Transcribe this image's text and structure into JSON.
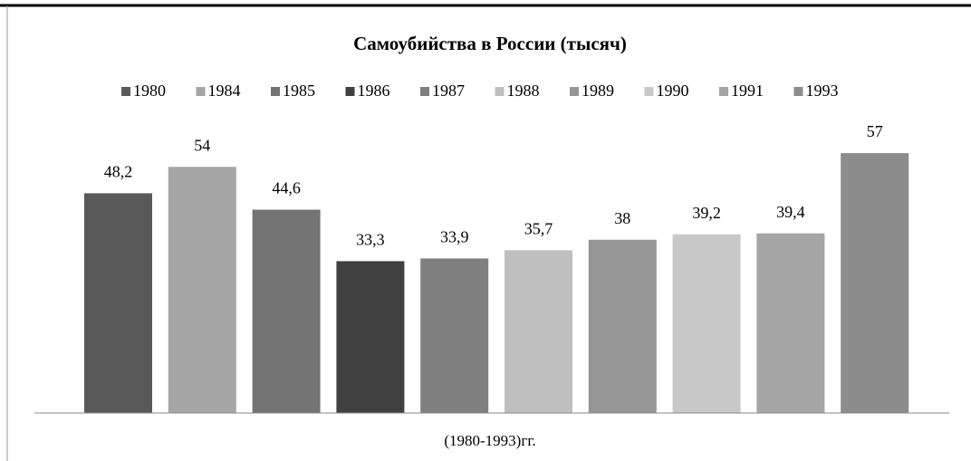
{
  "chart_data": {
    "type": "bar",
    "title": "Самоубийства в России (тысяч)",
    "x_label": "(1980-1993)гг.",
    "categories": [
      null
    ],
    "ylim": [
      0,
      60
    ],
    "series": [
      {
        "name": "1980",
        "color": "#595959",
        "values": [
          48.2
        ],
        "value_labels": [
          "48,2"
        ]
      },
      {
        "name": "1984",
        "color": "#a6a6a6",
        "values": [
          54
        ],
        "value_labels": [
          "54"
        ]
      },
      {
        "name": "1985",
        "color": "#737373",
        "values": [
          44.6
        ],
        "value_labels": [
          "44,6"
        ]
      },
      {
        "name": "1986",
        "color": "#404040",
        "values": [
          33.3
        ],
        "value_labels": [
          "33,3"
        ]
      },
      {
        "name": "1987",
        "color": "#7f7f7f",
        "values": [
          33.9
        ],
        "value_labels": [
          "33,9"
        ]
      },
      {
        "name": "1988",
        "color": "#bfbfbf",
        "values": [
          35.7
        ],
        "value_labels": [
          "35,7"
        ]
      },
      {
        "name": "1989",
        "color": "#969696",
        "values": [
          38
        ],
        "value_labels": [
          "38"
        ]
      },
      {
        "name": "1990",
        "color": "#c8c8c8",
        "values": [
          39.2
        ],
        "value_labels": [
          "39,2"
        ]
      },
      {
        "name": "1991",
        "color": "#a5a5a5",
        "values": [
          39.4
        ],
        "value_labels": [
          "39,4"
        ]
      },
      {
        "name": "1993",
        "color": "#8c8c8c",
        "values": [
          57
        ],
        "value_labels": [
          "57"
        ]
      }
    ]
  }
}
